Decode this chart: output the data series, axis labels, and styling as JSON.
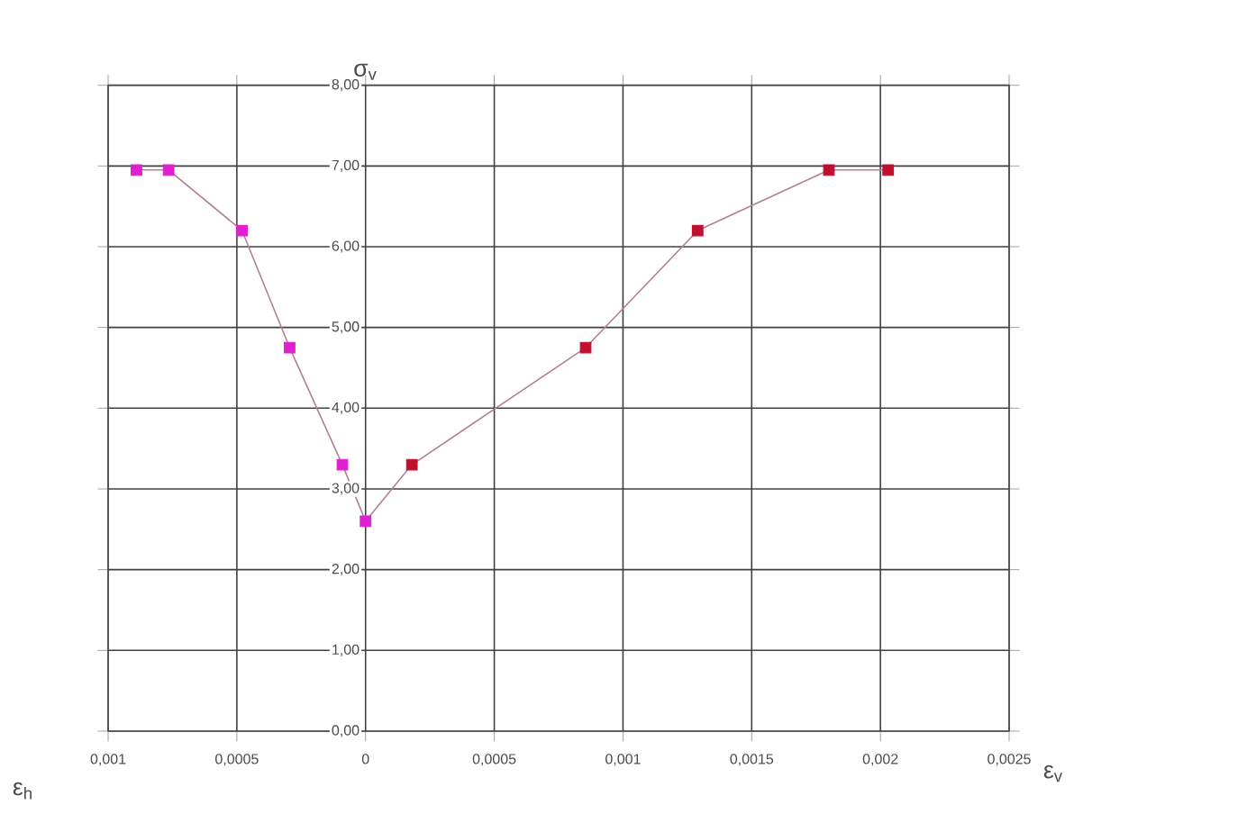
{
  "chart_data": {
    "type": "line",
    "ylabel": "σ$_{v}$",
    "xlabel": "ε$_{v}$",
    "annotations": [
      "ε$_{h}$"
    ],
    "x": [
      -0.00089,
      -0.000765,
      -0.00048,
      -0.000295,
      -9e-05,
      0,
      0.00018,
      0.000855,
      0.00129,
      0.0018,
      0.00203
    ],
    "series": [
      {
        "color": "#b08098",
        "values": [
          6.95,
          6.95,
          6.2,
          4.75,
          3.3,
          2.6,
          3.3,
          4.75,
          6.2,
          6.95,
          6.95
        ],
        "colors": [
          "#e020d0",
          "#e020d0",
          "#e020d0",
          "#e020d0",
          "#e020d0",
          "#e020d0",
          "#c01030",
          "#c01030",
          "#c01030",
          "#c01030",
          "#c01030"
        ]
      }
    ],
    "marker": "square",
    "grid": true,
    "xlim": [
      -0.001,
      0.0025
    ],
    "xticks": [
      {
        "value": -0.001,
        "label": "0,001"
      },
      {
        "value": -0.0005,
        "label": "0,0005"
      },
      {
        "value": 0,
        "label": "0"
      },
      {
        "value": 0.0005,
        "label": "0,0005"
      },
      {
        "value": 0.001,
        "label": "0,001"
      },
      {
        "value": 0.0015,
        "label": "0,0015"
      },
      {
        "value": 0.002,
        "label": "0,002"
      },
      {
        "value": 0.0025,
        "label": "0,0025"
      }
    ],
    "ylim": [
      0,
      8
    ],
    "yticks": [
      {
        "value": 0,
        "label": "0,00"
      },
      {
        "value": 1,
        "label": "1,00"
      },
      {
        "value": 2,
        "label": "2,00"
      },
      {
        "value": 3,
        "label": "3,00"
      },
      {
        "value": 4,
        "label": "4,00"
      },
      {
        "value": 5,
        "label": "5,00"
      },
      {
        "value": 6,
        "label": "6,00"
      },
      {
        "value": 7,
        "label": "7,00"
      },
      {
        "value": 8,
        "label": "8,00"
      }
    ]
  }
}
